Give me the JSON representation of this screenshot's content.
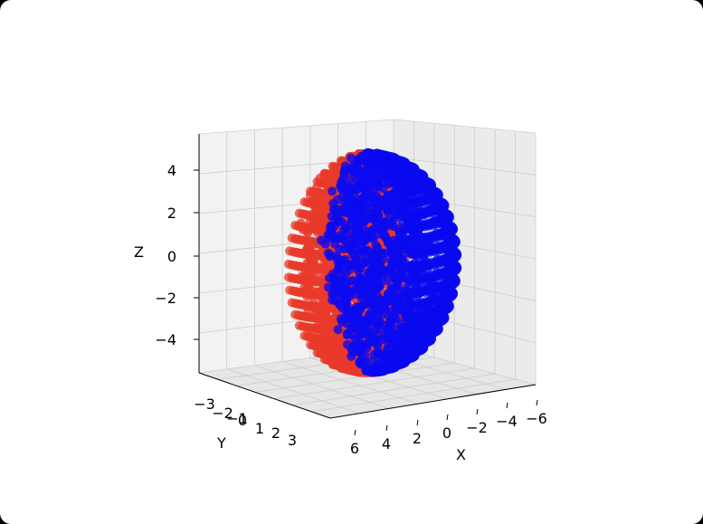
{
  "chart_data": {
    "type": "scatter",
    "projection": "3d",
    "title": "",
    "xlabel": "X",
    "ylabel": "Y",
    "zlabel": "Z",
    "x_ticks": [
      "6",
      "4",
      "2",
      "0",
      "−2",
      "−4",
      "−6"
    ],
    "y_ticks": [
      "−3",
      "−2",
      "−1",
      "0",
      "1",
      "2",
      "3"
    ],
    "z_ticks": [
      "4",
      "2",
      "0",
      "−2",
      "−4"
    ],
    "xlim": [
      6.5,
      -6.5
    ],
    "ylim": [
      -3.3,
      3.3
    ],
    "zlim": [
      -5.5,
      5.5
    ],
    "grid": true,
    "series": [
      {
        "color": "#e8392a",
        "shape": "hemisphere of radius 5 centered at x=0 (x ≥ 0 half), drawn as ~25 dense meridian rays",
        "x_range": [
          0,
          5
        ],
        "y_range": [
          -3.5,
          3.5
        ],
        "z_range": [
          -5,
          5
        ]
      },
      {
        "color": "#0a0af0",
        "shape": "hemisphere of radius 5 centered at x=0 (x ≤ 0 half), drawn as ~25 dense meridian rays",
        "x_range": [
          -5,
          0
        ],
        "y_range": [
          -3.5,
          3.5
        ],
        "z_range": [
          -5,
          5
        ]
      }
    ]
  }
}
